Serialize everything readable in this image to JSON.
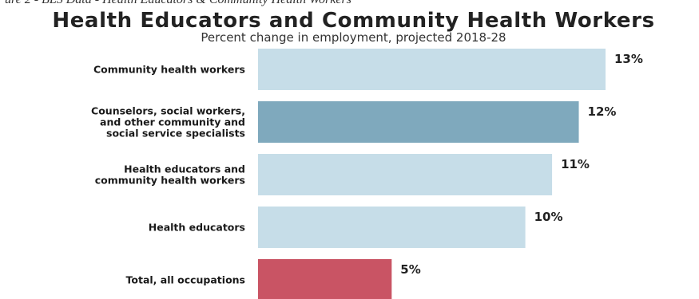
{
  "header_fragment": "ure 2 - BLS Data - Health Educators & Community Health Workers",
  "chart_data": {
    "type": "bar",
    "orientation": "horizontal",
    "title": "Health Educators and Community Health Workers",
    "subtitle": "Percent change in employment, projected 2018-28",
    "categories": [
      [
        "Community health workers"
      ],
      [
        "Counselors, social workers,",
        "and other community and",
        "social service specialists"
      ],
      [
        "Health educators and",
        "community health workers"
      ],
      [
        "Health educators"
      ],
      [
        "Total, all occupations"
      ]
    ],
    "values": [
      13,
      12,
      11,
      10,
      5
    ],
    "value_labels": [
      "13%",
      "12%",
      "11%",
      "10%",
      "5%"
    ],
    "bar_colors": [
      "#c6dde8",
      "#7fa9bd",
      "#c6dde8",
      "#c6dde8",
      "#c95464"
    ],
    "xlim": [
      0,
      13
    ],
    "grid": false,
    "legend": "none"
  }
}
